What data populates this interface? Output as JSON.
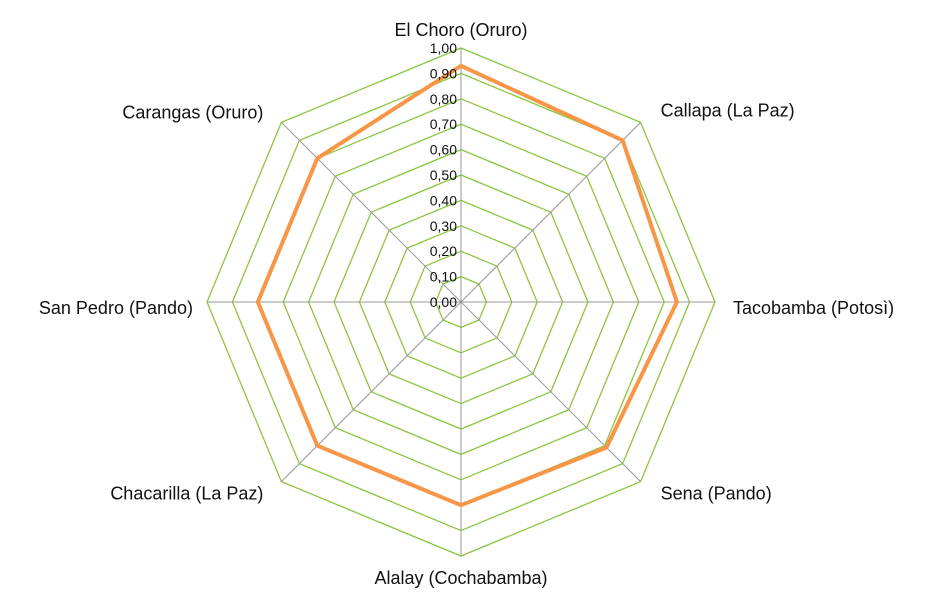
{
  "chart_data": {
    "type": "radar",
    "categories": [
      "El Choro (Oruro)",
      "Callapa (La Paz)",
      "Tacobamba (Potosì)",
      "Sena (Pando)",
      "Alalay (Cochabamba)",
      "Chacarilla (La Paz)",
      "San Pedro (Pando)",
      "Carangas (Oruro)"
    ],
    "ticks": [
      "0,00",
      "0,10",
      "0,20",
      "0,30",
      "0,40",
      "0,50",
      "0,60",
      "0,70",
      "0,80",
      "0,90",
      "1,00"
    ],
    "rmin": 0,
    "rmax": 1,
    "series": [
      {
        "values": [
          0.93,
          0.9,
          0.85,
          0.81,
          0.8,
          0.8,
          0.8,
          0.8
        ]
      }
    ],
    "grid": true,
    "legend": "none",
    "colors": {
      "grid": "#8cc63f",
      "series": "#f79646",
      "spokes": "#999999"
    }
  }
}
